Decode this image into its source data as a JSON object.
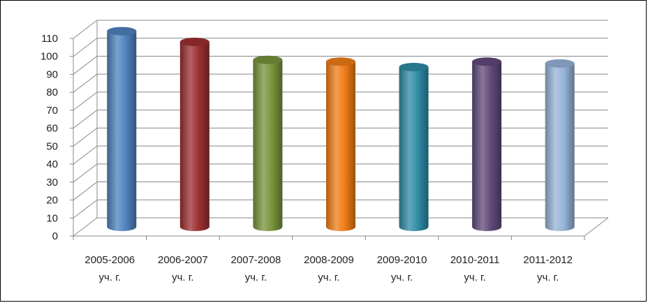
{
  "chart_data": {
    "type": "bar",
    "style": "3d-cylinder",
    "categories": [
      [
        "2005-2006",
        "уч. г."
      ],
      [
        "2006-2007",
        "уч. г."
      ],
      [
        "2007-2008",
        "уч. г."
      ],
      [
        "2008-2009",
        "уч. г."
      ],
      [
        "2009-2010",
        "уч. г."
      ],
      [
        "2010-2011",
        "уч. г."
      ],
      [
        "2011-2012",
        "уч. г."
      ]
    ],
    "values": [
      109,
      103,
      93,
      92,
      89,
      92,
      91
    ],
    "colors": [
      "#4f81bd",
      "#9b2f30",
      "#77933c",
      "#f07b17",
      "#2e8ba5",
      "#60497a",
      "#95b3d7"
    ],
    "y_ticks": [
      "0",
      "10",
      "20",
      "30",
      "40",
      "50",
      "60",
      "70",
      "80",
      "90",
      "100",
      "110"
    ],
    "ylim": [
      0,
      110
    ],
    "grid": true,
    "legend": "none",
    "title": "",
    "xlabel": "",
    "ylabel": ""
  }
}
